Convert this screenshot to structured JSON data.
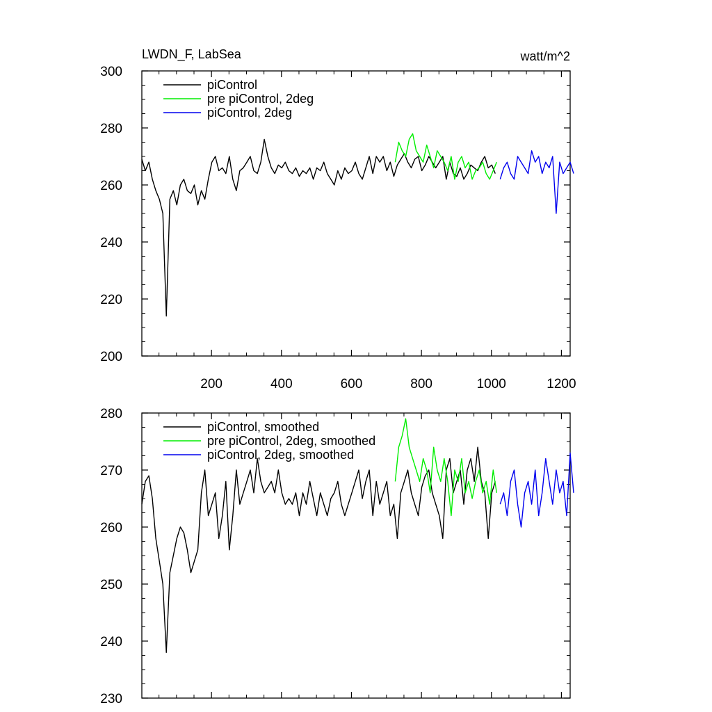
{
  "chart_data": [
    {
      "type": "line",
      "title_left": "LWDN_F, LabSea",
      "title_right": "watt/m^2",
      "xlim": [
        1,
        1225
      ],
      "ylim": [
        200,
        300
      ],
      "x_ticks": [
        200,
        400,
        600,
        800,
        1000,
        1200
      ],
      "y_ticks": [
        200,
        220,
        240,
        260,
        280,
        300
      ],
      "legend_position": "top-left",
      "series": [
        {
          "name": "piControl",
          "color": "#000000",
          "x_start": 1,
          "x_step": 10,
          "values": [
            269,
            265,
            268,
            262,
            258,
            255,
            250,
            214,
            255,
            258,
            253,
            260,
            262,
            258,
            257,
            260,
            253,
            258,
            255,
            262,
            268,
            270,
            265,
            266,
            264,
            270,
            262,
            258,
            265,
            266,
            268,
            270,
            265,
            264,
            268,
            276,
            270,
            266,
            264,
            267,
            266,
            268,
            265,
            264,
            266,
            263,
            265,
            264,
            266,
            262,
            266,
            265,
            268,
            264,
            262,
            260,
            265,
            262,
            266,
            264,
            265,
            268,
            264,
            262,
            266,
            270,
            264,
            270,
            268,
            270,
            265,
            268,
            263,
            267,
            269,
            271,
            268,
            266,
            269,
            270,
            265,
            267,
            270,
            268,
            266,
            268,
            270,
            262,
            268,
            264,
            263,
            266,
            262,
            264,
            267,
            266,
            265,
            268,
            270,
            266,
            267,
            264
          ]
        },
        {
          "name": "pre piControl, 2deg",
          "color": "#00ee00",
          "x_start": 725,
          "x_step": 10,
          "values": [
            268,
            275,
            272,
            270,
            276,
            278,
            272,
            270,
            268,
            274,
            270,
            266,
            272,
            270,
            268,
            265,
            270,
            262,
            268,
            270,
            266,
            268,
            262,
            265,
            266,
            268,
            264,
            262,
            265,
            268
          ]
        },
        {
          "name": "piControl, 2deg",
          "color": "#0000ee",
          "x_start": 1025,
          "x_step": 10,
          "values": [
            262,
            266,
            268,
            264,
            262,
            270,
            268,
            266,
            264,
            272,
            268,
            270,
            264,
            268,
            266,
            270,
            250,
            268,
            264,
            266,
            268,
            264
          ]
        }
      ]
    },
    {
      "type": "line",
      "xlim": [
        1,
        1225
      ],
      "ylim": [
        230,
        280
      ],
      "x_ticks": [
        200,
        400,
        600,
        800,
        1000,
        1200
      ],
      "y_ticks": [
        230,
        240,
        250,
        260,
        270,
        280
      ],
      "legend_position": "top-left",
      "series": [
        {
          "name": "piControl, smoothed",
          "color": "#000000",
          "x_start": 1,
          "x_step": 10,
          "values": [
            264,
            268,
            269,
            265,
            258,
            254,
            250,
            238,
            252,
            255,
            258,
            260,
            259,
            256,
            252,
            254,
            256,
            266,
            270,
            262,
            264,
            266,
            258,
            262,
            268,
            256,
            262,
            270,
            264,
            266,
            268,
            270,
            266,
            272,
            268,
            266,
            267,
            268,
            266,
            270,
            266,
            264,
            265,
            264,
            266,
            262,
            266,
            264,
            268,
            265,
            262,
            266,
            264,
            262,
            265,
            266,
            268,
            264,
            262,
            264,
            266,
            268,
            270,
            265,
            268,
            270,
            262,
            268,
            264,
            266,
            268,
            262,
            264,
            258,
            266,
            268,
            270,
            266,
            264,
            262,
            267,
            269,
            270,
            266,
            264,
            262,
            258,
            270,
            272,
            266,
            268,
            270,
            264,
            270,
            272,
            268,
            274,
            268,
            266,
            258,
            266,
            268
          ]
        },
        {
          "name": "pre piControl, 2deg, smoothed",
          "color": "#00ee00",
          "x_start": 725,
          "x_step": 10,
          "values": [
            268,
            274,
            276,
            279,
            274,
            272,
            270,
            268,
            272,
            270,
            266,
            274,
            270,
            268,
            272,
            268,
            262,
            270,
            268,
            272,
            266,
            268,
            265,
            268,
            270,
            266,
            268,
            264,
            270,
            266
          ]
        },
        {
          "name": "piControl, 2deg, smoothed",
          "color": "#0000ee",
          "x_start": 1025,
          "x_step": 10,
          "values": [
            264,
            266,
            262,
            268,
            270,
            264,
            260,
            266,
            268,
            264,
            270,
            262,
            266,
            272,
            268,
            264,
            270,
            266,
            268,
            262,
            273,
            266
          ]
        }
      ]
    }
  ]
}
